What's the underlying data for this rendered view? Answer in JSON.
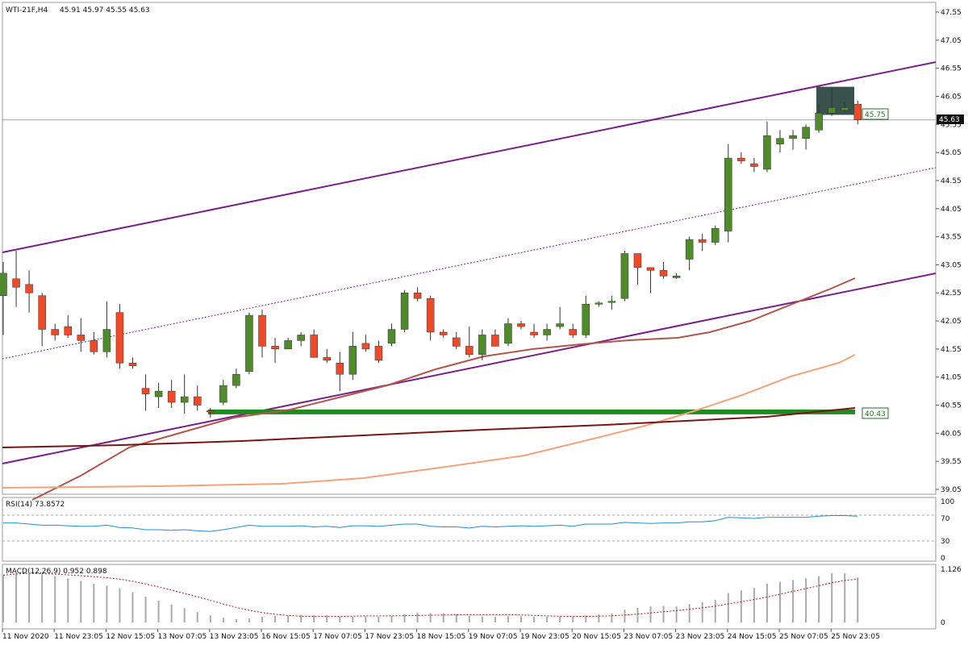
{
  "header": {
    "symbol": "WTI-21F,H4",
    "ohlc": "45.91 45.97 45.55 45.63"
  },
  "price_axis": {
    "ticks": [
      "47.55",
      "47.05",
      "46.55",
      "46.05",
      "45.55",
      "45.05",
      "44.55",
      "44.05",
      "43.55",
      "43.05",
      "42.55",
      "42.05",
      "41.55",
      "41.05",
      "40.55",
      "40.05",
      "39.55",
      "39.05"
    ],
    "current_price": "45.63",
    "level_high": "45.75",
    "level_low": "40.43"
  },
  "time_axis": {
    "labels": [
      "11 Nov 2020",
      "11 Nov 23:05",
      "12 Nov 15:05",
      "13 Nov 07:05",
      "13 Nov 23:05",
      "16 Nov 15:05",
      "17 Nov 07:05",
      "17 Nov 23:05",
      "18 Nov 15:05",
      "19 Nov 07:05",
      "19 Nov 23:05",
      "20 Nov 15:05",
      "23 Nov 07:05",
      "23 Nov 23:05",
      "24 Nov 15:05",
      "25 Nov 07:05",
      "25 Nov 23:05"
    ]
  },
  "rsi": {
    "label": "RSI(14) 73.8572",
    "ticks": [
      "100",
      "70",
      "30",
      "0"
    ]
  },
  "macd": {
    "label": "MACD(12,26,9) 0.952 0.898",
    "ticks": [
      "1.126",
      "0"
    ]
  },
  "colors": {
    "bull": "#4f8a2b",
    "bear": "#ee4a2a",
    "channel": "#7a1f8a",
    "ma_fast": "#b5544b",
    "ma_slow": "#f5a27a",
    "ma_long": "#7b1414",
    "support": "#1f8a1f",
    "rsi_line": "#1e90d8",
    "macd_signal": "#c0161a"
  },
  "chart_data": {
    "type": "candlestick",
    "title": "",
    "ylim": [
      38.95,
      47.65
    ],
    "candles": [
      {
        "o": 42.5,
        "h": 43.1,
        "l": 41.8,
        "c": 42.9
      },
      {
        "o": 42.8,
        "h": 43.3,
        "l": 42.3,
        "c": 42.65
      },
      {
        "o": 42.7,
        "h": 42.95,
        "l": 42.2,
        "c": 42.55
      },
      {
        "o": 42.5,
        "h": 42.55,
        "l": 41.6,
        "c": 41.9
      },
      {
        "o": 41.9,
        "h": 42.0,
        "l": 41.7,
        "c": 41.8
      },
      {
        "o": 41.95,
        "h": 42.15,
        "l": 41.75,
        "c": 41.8
      },
      {
        "o": 41.8,
        "h": 42.1,
        "l": 41.5,
        "c": 41.7
      },
      {
        "o": 41.7,
        "h": 41.85,
        "l": 41.45,
        "c": 41.5
      },
      {
        "o": 41.5,
        "h": 42.4,
        "l": 41.4,
        "c": 41.9
      },
      {
        "o": 42.2,
        "h": 42.35,
        "l": 41.2,
        "c": 41.3
      },
      {
        "o": 41.3,
        "h": 41.4,
        "l": 41.2,
        "c": 41.25
      },
      {
        "o": 40.85,
        "h": 41.1,
        "l": 40.45,
        "c": 40.75
      },
      {
        "o": 40.7,
        "h": 40.95,
        "l": 40.5,
        "c": 40.8
      },
      {
        "o": 40.8,
        "h": 41.0,
        "l": 40.5,
        "c": 40.6
      },
      {
        "o": 40.6,
        "h": 41.1,
        "l": 40.4,
        "c": 40.7
      },
      {
        "o": 40.7,
        "h": 40.9,
        "l": 40.45,
        "c": 40.55
      },
      {
        "o": 40.45,
        "h": 40.5,
        "l": 40.33,
        "c": 40.43
      },
      {
        "o": 40.6,
        "h": 41.0,
        "l": 40.55,
        "c": 40.9
      },
      {
        "o": 40.9,
        "h": 41.2,
        "l": 40.85,
        "c": 41.1
      },
      {
        "o": 41.15,
        "h": 42.2,
        "l": 41.1,
        "c": 42.15
      },
      {
        "o": 42.15,
        "h": 42.25,
        "l": 41.4,
        "c": 41.6
      },
      {
        "o": 41.6,
        "h": 41.75,
        "l": 41.3,
        "c": 41.55
      },
      {
        "o": 41.55,
        "h": 41.75,
        "l": 41.55,
        "c": 41.7
      },
      {
        "o": 41.7,
        "h": 41.85,
        "l": 41.6,
        "c": 41.8
      },
      {
        "o": 41.8,
        "h": 41.9,
        "l": 41.4,
        "c": 41.4
      },
      {
        "o": 41.4,
        "h": 41.55,
        "l": 41.3,
        "c": 41.35
      },
      {
        "o": 41.3,
        "h": 41.5,
        "l": 40.8,
        "c": 41.1
      },
      {
        "o": 41.1,
        "h": 41.85,
        "l": 41.0,
        "c": 41.6
      },
      {
        "o": 41.65,
        "h": 41.8,
        "l": 41.5,
        "c": 41.55
      },
      {
        "o": 41.6,
        "h": 41.7,
        "l": 41.3,
        "c": 41.35
      },
      {
        "o": 41.65,
        "h": 42.0,
        "l": 41.6,
        "c": 41.9
      },
      {
        "o": 41.9,
        "h": 42.6,
        "l": 41.85,
        "c": 42.55
      },
      {
        "o": 42.55,
        "h": 42.65,
        "l": 42.4,
        "c": 42.45
      },
      {
        "o": 42.45,
        "h": 42.5,
        "l": 41.7,
        "c": 41.85
      },
      {
        "o": 41.85,
        "h": 41.9,
        "l": 41.75,
        "c": 41.8
      },
      {
        "o": 41.75,
        "h": 41.85,
        "l": 41.55,
        "c": 41.6
      },
      {
        "o": 41.6,
        "h": 41.95,
        "l": 41.4,
        "c": 41.45
      },
      {
        "o": 41.45,
        "h": 41.9,
        "l": 41.35,
        "c": 41.8
      },
      {
        "o": 41.8,
        "h": 41.9,
        "l": 41.6,
        "c": 41.6
      },
      {
        "o": 41.65,
        "h": 42.1,
        "l": 41.6,
        "c": 42.0
      },
      {
        "o": 42.0,
        "h": 42.05,
        "l": 41.9,
        "c": 41.95
      },
      {
        "o": 41.85,
        "h": 42.0,
        "l": 41.75,
        "c": 41.8
      },
      {
        "o": 41.8,
        "h": 42.0,
        "l": 41.7,
        "c": 41.9
      },
      {
        "o": 41.95,
        "h": 42.3,
        "l": 41.9,
        "c": 42.0
      },
      {
        "o": 41.9,
        "h": 42.0,
        "l": 41.75,
        "c": 41.8
      },
      {
        "o": 41.8,
        "h": 42.5,
        "l": 41.75,
        "c": 42.35
      },
      {
        "o": 42.35,
        "h": 42.4,
        "l": 42.3,
        "c": 42.37
      },
      {
        "o": 42.38,
        "h": 42.5,
        "l": 42.25,
        "c": 42.4
      },
      {
        "o": 42.45,
        "h": 43.3,
        "l": 42.4,
        "c": 43.25
      },
      {
        "o": 43.25,
        "h": 43.25,
        "l": 42.7,
        "c": 43.0
      },
      {
        "o": 43.0,
        "h": 43.0,
        "l": 42.55,
        "c": 42.95
      },
      {
        "o": 42.95,
        "h": 43.1,
        "l": 42.8,
        "c": 42.85
      },
      {
        "o": 42.82,
        "h": 42.9,
        "l": 42.8,
        "c": 42.85
      },
      {
        "o": 43.15,
        "h": 43.55,
        "l": 42.95,
        "c": 43.5
      },
      {
        "o": 43.5,
        "h": 43.6,
        "l": 43.3,
        "c": 43.45
      },
      {
        "o": 43.45,
        "h": 43.75,
        "l": 43.4,
        "c": 43.7
      },
      {
        "o": 43.65,
        "h": 45.2,
        "l": 43.45,
        "c": 44.95
      },
      {
        "o": 44.95,
        "h": 45.05,
        "l": 44.85,
        "c": 44.9
      },
      {
        "o": 44.85,
        "h": 44.95,
        "l": 44.7,
        "c": 44.8
      },
      {
        "o": 44.75,
        "h": 45.6,
        "l": 44.7,
        "c": 45.35
      },
      {
        "o": 45.2,
        "h": 45.45,
        "l": 45.05,
        "c": 45.3
      },
      {
        "o": 45.3,
        "h": 45.45,
        "l": 45.1,
        "c": 45.35
      },
      {
        "o": 45.3,
        "h": 45.55,
        "l": 45.1,
        "c": 45.5
      },
      {
        "o": 45.45,
        "h": 45.9,
        "l": 45.4,
        "c": 45.75
      },
      {
        "o": 45.75,
        "h": 46.2,
        "l": 45.7,
        "c": 45.85
      },
      {
        "o": 45.8,
        "h": 45.95,
        "l": 45.75,
        "c": 45.85
      },
      {
        "o": 45.91,
        "h": 45.97,
        "l": 45.55,
        "c": 45.63
      }
    ]
  }
}
